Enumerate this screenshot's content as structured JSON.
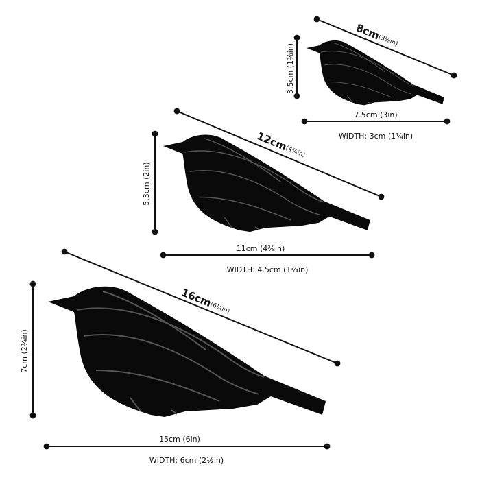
{
  "birds": [
    {
      "length": {
        "metric": "8cm",
        "imperial": "(3⅛in)"
      },
      "height": "3.5cm (1⅜in)",
      "base": "7.5cm (3in)",
      "width": "WIDTH: 3cm (1¼in)"
    },
    {
      "length": {
        "metric": "12cm",
        "imperial": "(4¾in)"
      },
      "height": "5.3cm (2in)",
      "base": "11cm (4⅜in)",
      "width": "WIDTH: 4.5cm (1¾in)"
    },
    {
      "length": {
        "metric": "16cm",
        "imperial": "(6¼in)"
      },
      "height": "7cm (2¾in)",
      "base": "15cm (6in)",
      "width": "WIDTH: 6cm (2½in)"
    }
  ]
}
